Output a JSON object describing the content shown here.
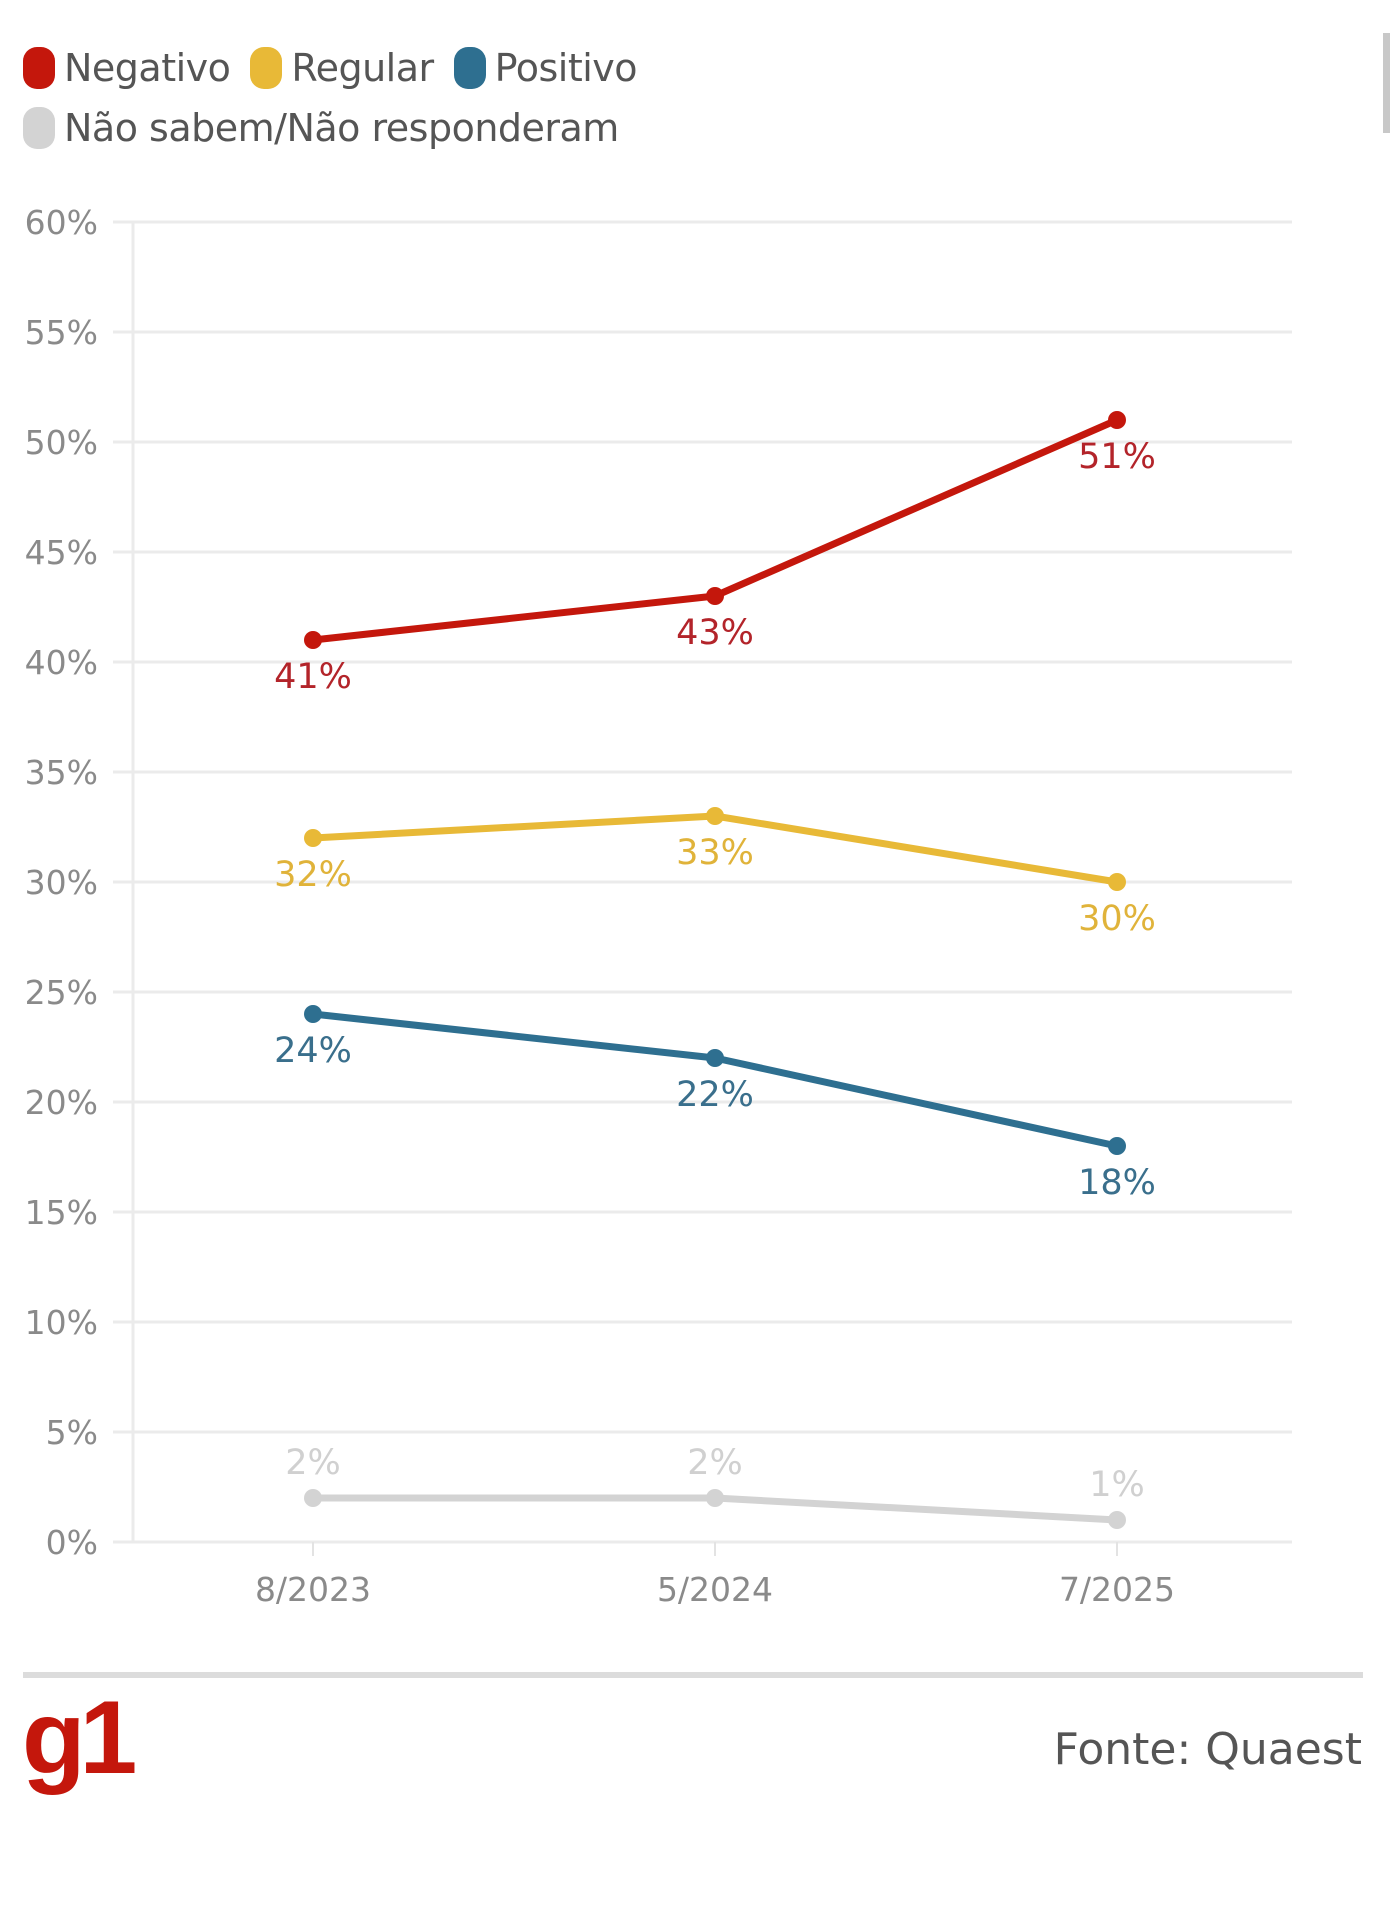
{
  "legend": [
    {
      "label": "Negativo",
      "color": "#c4170c"
    },
    {
      "label": "Regular",
      "color": "#e8b937"
    },
    {
      "label": "Positivo",
      "color": "#2e6f90"
    },
    {
      "label": "Não sabem/Não responderam",
      "color": "#d3d3d3"
    }
  ],
  "chart_data": {
    "type": "line",
    "title": "",
    "xlabel": "",
    "ylabel": "",
    "x": [
      "8/2023",
      "5/2024",
      "7/2025"
    ],
    "ylim": [
      0,
      60
    ],
    "yticks": [
      0,
      5,
      10,
      15,
      20,
      25,
      30,
      35,
      40,
      45,
      50,
      55,
      60
    ],
    "ytick_labels": [
      "0%",
      "5%",
      "10%",
      "15%",
      "20%",
      "25%",
      "30%",
      "35%",
      "40%",
      "45%",
      "50%",
      "55%",
      "60%"
    ],
    "grid": true,
    "legend_position": "top-left",
    "series": [
      {
        "name": "Negativo",
        "color": "#c4170c",
        "label_color": "#b3242a",
        "values": [
          41,
          43,
          51
        ],
        "labels": [
          "41%",
          "43%",
          "51%"
        ],
        "label_pos": "below"
      },
      {
        "name": "Regular",
        "color": "#e8b937",
        "label_color": "#e0b33a",
        "values": [
          32,
          33,
          30
        ],
        "labels": [
          "32%",
          "33%",
          "30%"
        ],
        "label_pos": "below"
      },
      {
        "name": "Positivo",
        "color": "#2e6f90",
        "label_color": "#3a6f8c",
        "values": [
          24,
          22,
          18
        ],
        "labels": [
          "24%",
          "22%",
          "18%"
        ],
        "label_pos": "below"
      },
      {
        "name": "Não sabem/Não responderam",
        "color": "#d3d3d3",
        "label_color": "#d0d0d0",
        "values": [
          2,
          2,
          1
        ],
        "labels": [
          "2%",
          "2%",
          "1%"
        ],
        "label_pos": "above"
      }
    ]
  },
  "footer": {
    "logo": "g1",
    "source": "Fonte: Quaest"
  }
}
